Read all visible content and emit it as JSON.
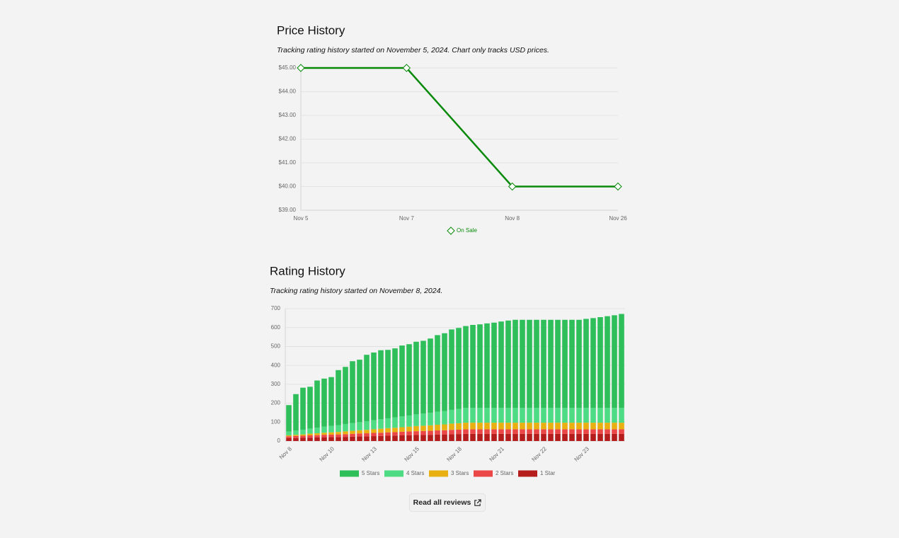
{
  "chart_data": [
    {
      "type": "line",
      "title": "Price History",
      "subtitle": "Tracking rating history started on November 5, 2024. Chart only tracks USD prices.",
      "categories": [
        "Nov 5",
        "Nov 7",
        "Nov 8",
        "Nov 26"
      ],
      "series": [
        {
          "name": "On Sale",
          "color": "#0a8a0a",
          "values": [
            45,
            45,
            40,
            40
          ]
        }
      ],
      "ylim": [
        39,
        45
      ],
      "yticks": [
        {
          "value": 39,
          "label": "$39.00"
        },
        {
          "value": 40,
          "label": "$40.00"
        },
        {
          "value": 41,
          "label": "$41.00"
        },
        {
          "value": 42,
          "label": "$42.00"
        },
        {
          "value": 43,
          "label": "$43.00"
        },
        {
          "value": 44,
          "label": "$44.00"
        },
        {
          "value": 45,
          "label": "$45.00"
        }
      ],
      "grid": true,
      "legend": "bottom"
    },
    {
      "type": "stacked_bar",
      "title": "Rating History",
      "subtitle": "Tracking rating history started on November 8, 2024.",
      "categories": [
        "Nov 8",
        null,
        null,
        null,
        null,
        null,
        "Nov 10",
        null,
        null,
        null,
        null,
        null,
        "Nov 13",
        null,
        null,
        null,
        null,
        null,
        "Nov 15",
        null,
        null,
        null,
        null,
        null,
        "Nov 18",
        null,
        null,
        null,
        null,
        null,
        "Nov 21",
        null,
        null,
        null,
        null,
        null,
        "Nov 22",
        null,
        null,
        null,
        null,
        null,
        "Nov 23",
        null,
        null,
        null,
        null,
        null
      ],
      "series": [
        {
          "name": "5 Stars",
          "color": "#2ebf5a",
          "values": [
            140,
            193,
            222,
            221,
            250,
            254,
            258,
            291,
            302,
            327,
            330,
            351,
            358,
            365,
            362,
            365,
            375,
            377,
            384,
            385,
            393,
            405,
            411,
            425,
            428,
            433,
            439,
            442,
            447,
            451,
            457,
            462,
            466,
            466,
            466,
            466,
            466,
            466,
            466,
            466,
            466,
            466,
            471,
            475,
            480,
            485,
            490,
            497
          ]
        },
        {
          "name": "4 Stars",
          "color": "#4ddc84",
          "values": [
            20,
            22,
            25,
            27,
            29,
            32,
            34,
            36,
            39,
            41,
            43,
            46,
            48,
            50,
            52,
            55,
            57,
            59,
            62,
            64,
            66,
            69,
            71,
            73,
            76,
            78,
            78,
            78,
            78,
            78,
            78,
            78,
            78,
            78,
            78,
            78,
            78,
            78,
            78,
            78,
            78,
            78,
            78,
            78,
            78,
            78,
            78,
            78
          ]
        },
        {
          "name": "3 Stars",
          "color": "#e9b012",
          "values": [
            5,
            6,
            7,
            9,
            10,
            11,
            12,
            13,
            15,
            16,
            17,
            18,
            19,
            21,
            22,
            23,
            24,
            25,
            27,
            28,
            29,
            30,
            31,
            33,
            34,
            35,
            35,
            35,
            35,
            35,
            35,
            35,
            35,
            35,
            35,
            35,
            35,
            35,
            35,
            35,
            35,
            35,
            35,
            35,
            35,
            35,
            35,
            35
          ]
        },
        {
          "name": "2 Stars",
          "color": "#eb4747",
          "values": [
            10,
            11,
            11,
            12,
            12,
            13,
            13,
            14,
            14,
            15,
            16,
            16,
            17,
            17,
            18,
            18,
            19,
            20,
            20,
            21,
            21,
            22,
            22,
            23,
            23,
            24,
            24,
            24,
            24,
            24,
            24,
            24,
            24,
            24,
            24,
            24,
            24,
            24,
            24,
            24,
            24,
            24,
            24,
            24,
            24,
            24,
            24,
            24
          ]
        },
        {
          "name": "1 Star",
          "color": "#b51d1d",
          "values": [
            15,
            16,
            17,
            18,
            19,
            20,
            21,
            21,
            22,
            23,
            24,
            25,
            26,
            27,
            28,
            29,
            30,
            31,
            32,
            32,
            33,
            34,
            35,
            36,
            37,
            38,
            38,
            38,
            38,
            38,
            38,
            38,
            38,
            38,
            38,
            38,
            38,
            38,
            38,
            38,
            38,
            38,
            38,
            38,
            38,
            38,
            38,
            38
          ]
        }
      ],
      "ylim": [
        0,
        700
      ],
      "yticks": [
        0,
        100,
        200,
        300,
        400,
        500,
        600,
        700
      ],
      "grid": true,
      "legend": "bottom"
    }
  ],
  "button": {
    "label": "Read all reviews"
  }
}
